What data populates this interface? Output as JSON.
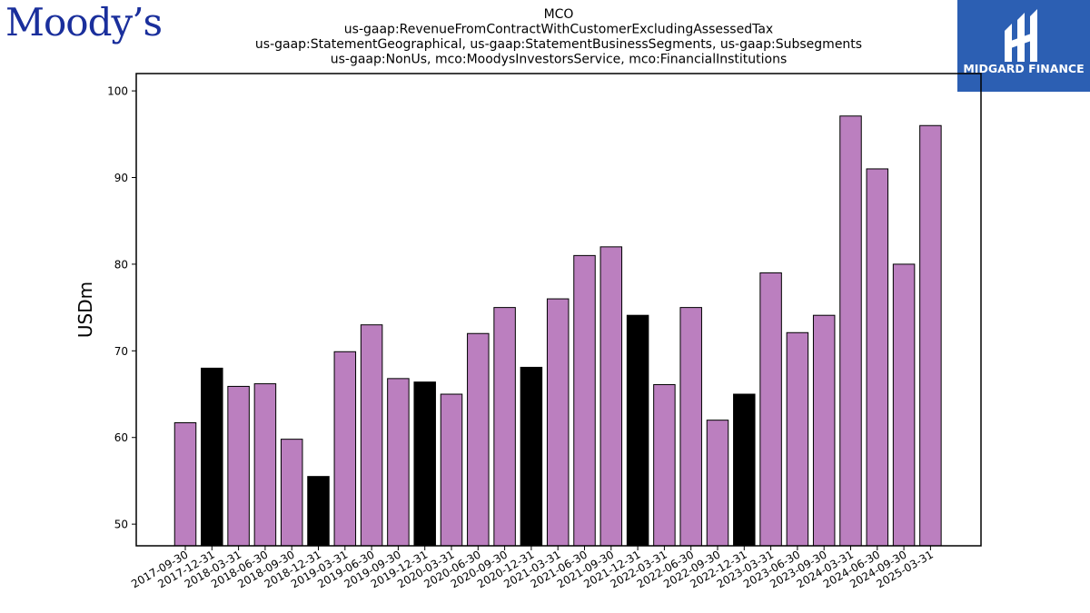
{
  "logos": {
    "left": "Moody’s",
    "right": "MIDGARD FINANCE"
  },
  "colors": {
    "purple_bar": "#bb7fbf",
    "black_bar": "#000000",
    "brand_box": "#2c5fb3",
    "moodys_blue": "#1a2f9c"
  },
  "chart_data": {
    "type": "bar",
    "title_lines": [
      "MCO",
      "us-gaap:RevenueFromContractWithCustomerExcludingAssessedTax",
      "us-gaap:StatementGeographical, us-gaap:StatementBusinessSegments, us-gaap:Subsegments",
      "us-gaap:NonUs, mco:MoodysInvestorsService, mco:FinancialInstitutions"
    ],
    "xlabel": "",
    "ylabel": "USDm",
    "ylim": [
      47.5,
      102
    ],
    "yticks": [
      50,
      60,
      70,
      80,
      90,
      100
    ],
    "grid": false,
    "categories": [
      "2017-09-30",
      "2017-12-31",
      "2018-03-31",
      "2018-06-30",
      "2018-09-30",
      "2018-12-31",
      "2019-03-31",
      "2019-06-30",
      "2019-09-30",
      "2019-12-31",
      "2020-03-31",
      "2020-06-30",
      "2020-09-30",
      "2020-12-31",
      "2021-03-31",
      "2021-06-30",
      "2021-09-30",
      "2021-12-31",
      "2022-03-31",
      "2022-06-30",
      "2022-09-30",
      "2022-12-31",
      "2023-03-31",
      "2023-06-30",
      "2023-09-30",
      "2024-03-31",
      "2024-06-30",
      "2024-09-30",
      "2025-03-31"
    ],
    "values": [
      61.7,
      68.0,
      65.9,
      66.2,
      59.8,
      55.5,
      69.9,
      73.0,
      66.8,
      66.4,
      65.0,
      72.0,
      75.0,
      68.1,
      76.0,
      81.0,
      82.0,
      74.1,
      66.1,
      75.0,
      62.0,
      65.0,
      79.0,
      72.1,
      74.1,
      97.1,
      91.0,
      80.0,
      96.0
    ],
    "bar_colors": [
      "purple",
      "black",
      "purple",
      "purple",
      "purple",
      "black",
      "purple",
      "purple",
      "purple",
      "black",
      "purple",
      "purple",
      "purple",
      "black",
      "purple",
      "purple",
      "purple",
      "black",
      "purple",
      "purple",
      "purple",
      "black",
      "purple",
      "purple",
      "purple",
      "purple",
      "purple",
      "purple",
      "purple"
    ]
  }
}
